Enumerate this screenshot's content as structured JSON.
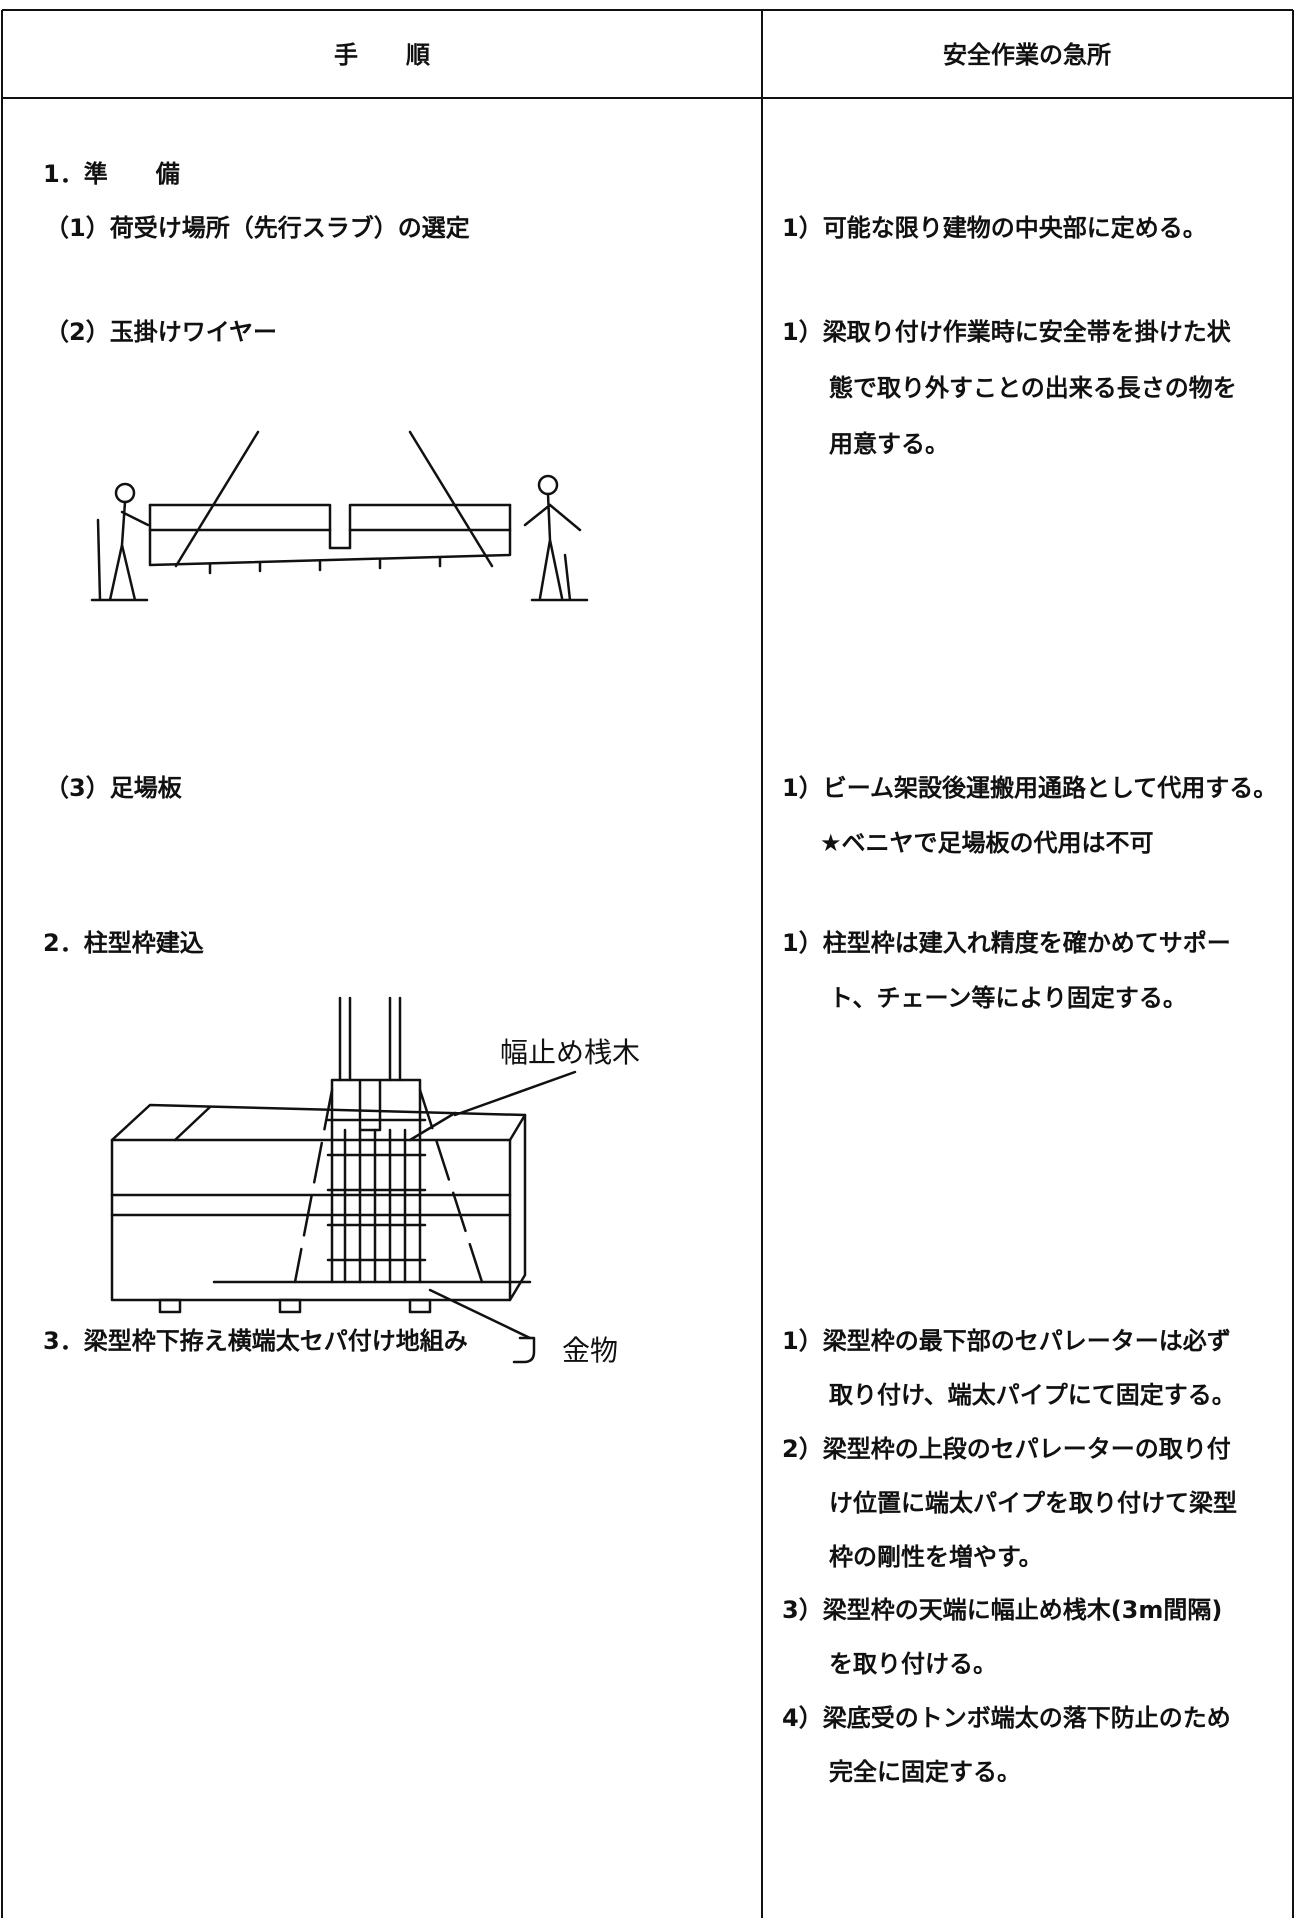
{
  "table": {
    "header": [
      "手　　順",
      "安全作業の急所"
    ],
    "procedure": [
      "1．準　　備",
      "（1）荷受け場所（先行スラブ）の選定",
      "（2）玉掛けワイヤー",
      "（3）足場板",
      "2．柱型枠建込",
      "3．梁型枠下拵え横端太セパ付け地組み"
    ],
    "safety": [
      "1）可能な限り建物の中央部に定める。",
      "1）梁取り付け作業時に安全帯を掛けた状",
      "態で取り外すことの出来る長さの物を",
      "用意する。",
      "1）ビーム架設後運搬用通路として代用する。",
      "★ベニヤで足場板の代用は不可",
      "1）柱型枠は建入れ精度を確かめてサポー",
      "ト、チェーン等により固定する。",
      "1）梁型枠の最下部のセパレーターは必ず",
      "取り付け、端太パイプにて固定する。",
      "2）梁型枠の上段のセパレーターの取り付",
      "け位置に端太パイプを取り付けて梁型",
      "枠の剛性を増やす。",
      "3）梁型枠の天端に幅止め桟木(3m間隔)",
      "を取り付ける。",
      "4）梁底受のトンボ端太の落下防止のため",
      "完全に固定する。"
    ]
  },
  "figures": {
    "beam_labels": [
      "幅止め桟木",
      "金物"
    ]
  }
}
